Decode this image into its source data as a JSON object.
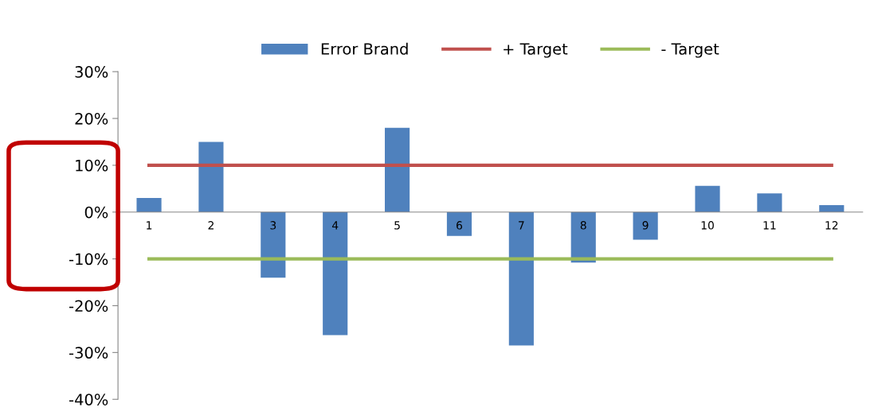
{
  "chart_data": {
    "type": "bar",
    "categories": [
      "1",
      "2",
      "3",
      "4",
      "5",
      "6",
      "7",
      "8",
      "9",
      "10",
      "11",
      "12"
    ],
    "series": [
      {
        "name": "Error Brand",
        "color": "#4f81bd",
        "values": [
          3,
          15,
          -14,
          -26.3,
          18,
          -5.1,
          -28.5,
          -10.8,
          -5.9,
          5.6,
          4,
          1.5
        ]
      },
      {
        "name": "+ Target",
        "type": "line",
        "color": "#c0504d",
        "values": [
          10,
          10,
          10,
          10,
          10,
          10,
          10,
          10,
          10,
          10,
          10,
          10
        ]
      },
      {
        "name": "- Target",
        "type": "line",
        "color": "#9bbb59",
        "values": [
          -10,
          -10,
          -10,
          -10,
          -10,
          -10,
          -10,
          -10,
          -10,
          -10,
          -10,
          -10
        ]
      }
    ],
    "ylim": [
      -40,
      30
    ],
    "yticks": [
      {
        "value": -40,
        "label": "-40%"
      },
      {
        "value": -30,
        "label": "-30%"
      },
      {
        "value": -20,
        "label": "-20%"
      },
      {
        "value": -10,
        "label": "-10%"
      },
      {
        "value": 0,
        "label": "0%"
      },
      {
        "value": 10,
        "label": "10%"
      },
      {
        "value": 20,
        "label": "20%"
      },
      {
        "value": 30,
        "label": "30%"
      }
    ],
    "grid": false,
    "legend": "top",
    "marker": "none",
    "line_style": "solid"
  }
}
